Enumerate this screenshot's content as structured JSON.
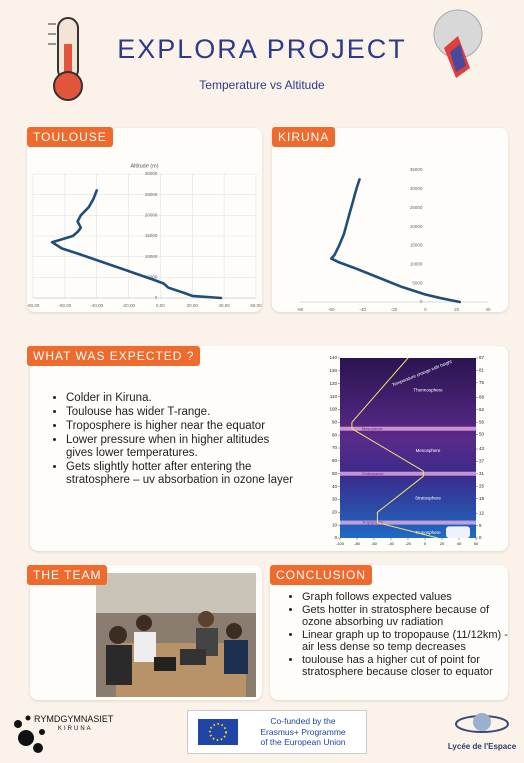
{
  "header": {
    "title": "EXPLORA PROJECT",
    "subtitle": "Temperature vs Altitude"
  },
  "toulouse": {
    "tag": "TOULOUSE",
    "chart": {
      "type": "line",
      "title": "Altitude (m)",
      "x": [
        38,
        20,
        15,
        5,
        2,
        -5,
        -20,
        -35,
        -50,
        -62,
        -68,
        -55,
        -52,
        -50,
        -52,
        -50,
        -45,
        -42,
        -40
      ],
      "values": [
        0,
        500,
        1200,
        2500,
        3500,
        4500,
        6500,
        8500,
        10500,
        12000,
        13500,
        15000,
        16000,
        17000,
        18500,
        20000,
        22000,
        24000,
        26000
      ],
      "color": "#1f4e79",
      "xlim": [
        -80,
        60
      ],
      "ylim": [
        0,
        30000
      ],
      "xticks": [
        {
          "value": -80,
          "label": "-80,00"
        },
        {
          "value": -60,
          "label": "-60,00"
        },
        {
          "value": -40,
          "label": "-40,00"
        },
        {
          "value": -20,
          "label": "-20,00"
        },
        {
          "value": 0,
          "label": "0,00"
        },
        {
          "value": 20,
          "label": "20,00"
        },
        {
          "value": 40,
          "label": "40,00"
        },
        {
          "value": 60,
          "label": "60,00"
        }
      ],
      "yticks": [
        0,
        5000,
        10000,
        15000,
        20000,
        25000,
        30000
      ],
      "grid": true
    }
  },
  "kiruna": {
    "tag": "KIRUNA",
    "chart": {
      "type": "line",
      "x": [
        22,
        10,
        0,
        -15,
        -30,
        -45,
        -55,
        -60,
        -58,
        -55,
        -52,
        -50,
        -48,
        -46,
        -44,
        -42
      ],
      "values": [
        0,
        1000,
        2000,
        4000,
        6500,
        9000,
        10500,
        11500,
        12500,
        15000,
        18000,
        21000,
        24000,
        27000,
        30000,
        32500
      ],
      "color": "#1f4e79",
      "xlim": [
        -80,
        40
      ],
      "ylim": [
        0,
        35000
      ],
      "xticks": [
        -80,
        -60,
        -40,
        -20,
        0,
        20,
        40
      ],
      "yticks": [
        0,
        5000,
        10000,
        15000,
        20000,
        25000,
        30000,
        35000
      ],
      "grid": false
    }
  },
  "expected": {
    "tag": "WHAT WAS EXPECTED ?",
    "items": [
      "Colder in Kiruna.",
      "Toulouse has wider T-range.",
      "Troposphere is higher near the equator",
      "Lower pressure when in higher altitudes gives lower temperatures.",
      "Gets slightly hotter after entering the stratosphere – uv absorbation in ozone layer"
    ],
    "diagram": {
      "type": "line",
      "title": "Temperature change with height",
      "layers": [
        "Thermosphere",
        "Mesosphere",
        "Stratosphere",
        "Troposphere"
      ],
      "boundaries": [
        "Mesopause",
        "Stratopause",
        "Tropopause"
      ],
      "x": [
        15,
        -56,
        -56,
        -2,
        -2,
        -86,
        -86,
        -20
      ],
      "values": [
        0,
        12,
        20,
        48,
        52,
        85,
        90,
        140
      ],
      "color": "#f2e36b",
      "xlim": [
        -100,
        60
      ],
      "ylim": [
        0,
        140
      ],
      "y2lim": [
        0,
        87
      ],
      "xticks": [
        -100,
        -80,
        -60,
        -40,
        -20,
        0,
        20,
        40,
        60
      ],
      "yticks": [
        0,
        10,
        20,
        30,
        40,
        50,
        60,
        70,
        80,
        90,
        100,
        110,
        120,
        130,
        140
      ],
      "y2ticks": [
        0,
        6,
        12,
        19,
        25,
        31,
        37,
        43,
        50,
        56,
        62,
        68,
        75,
        81,
        87
      ]
    }
  },
  "team": {
    "tag": "THE TEAM"
  },
  "conclusion": {
    "tag": "CONCLUSION",
    "items": [
      "Graph follows expected values",
      "Gets hotter in stratosphere because of ozone absorbing uv radiation",
      "Linear graph up to tropopause (11/12km) - air less dense so temp decreases",
      "toulouse has a higher cut of point for stratosphere because closer to equator"
    ]
  },
  "footer": {
    "school": "RYMDGYMNASIET",
    "town": "KIRUNA",
    "eu_lines": [
      "Co-funded by the",
      "Erasmus+ Programme",
      "of the European Union"
    ],
    "partner": "Lycée de l'Espace"
  }
}
